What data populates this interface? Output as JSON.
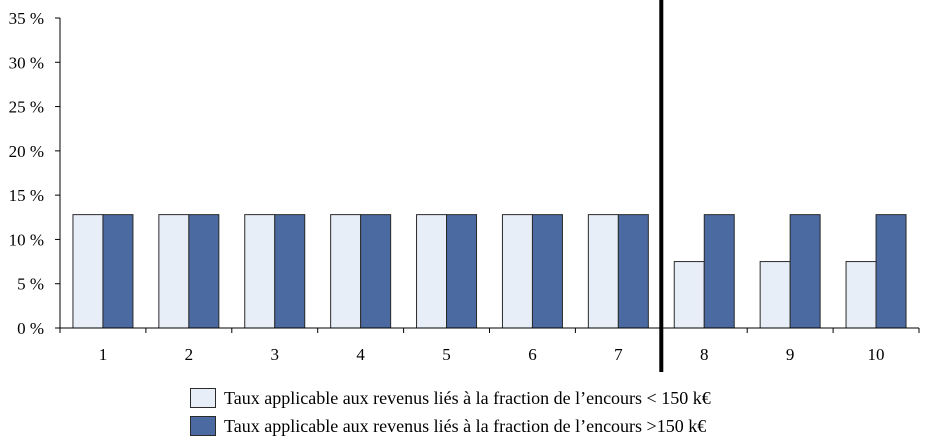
{
  "chart_data": {
    "type": "bar",
    "categories": [
      "1",
      "2",
      "3",
      "4",
      "5",
      "6",
      "7",
      "8",
      "9",
      "10"
    ],
    "series": [
      {
        "name": "Taux applicable aux revenus liés à la fraction de l’encours  < 150 k€",
        "values": [
          12.8,
          12.8,
          12.8,
          12.8,
          12.8,
          12.8,
          12.8,
          7.5,
          7.5,
          7.5
        ],
        "color": "#e8eef7"
      },
      {
        "name": "Taux applicable aux revenus liés à la fraction de l’encours  >150 k€",
        "values": [
          12.8,
          12.8,
          12.8,
          12.8,
          12.8,
          12.8,
          12.8,
          12.8,
          12.8,
          12.8
        ],
        "color": "#4a6aa1"
      }
    ],
    "y_ticks": [
      "0 %",
      "5 %",
      "10 %",
      "15 %",
      "20 %",
      "25 %",
      "30 %",
      "35 %"
    ],
    "ylim": [
      0,
      35
    ],
    "y_unit": "%",
    "grid": false,
    "legend_position": "bottom",
    "divider_after_category": "7"
  }
}
